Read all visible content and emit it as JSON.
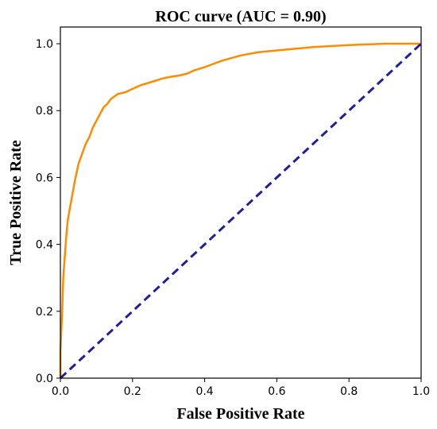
{
  "chart_data": {
    "type": "line",
    "title": "ROC curve (AUC = 0.90)",
    "xlabel": "False Positive Rate",
    "ylabel": "True Positive Rate",
    "xlim": [
      0.0,
      1.0
    ],
    "ylim": [
      0.0,
      1.05
    ],
    "xticks": [
      "0.0",
      "0.2",
      "0.4",
      "0.6",
      "0.8",
      "1.0"
    ],
    "yticks": [
      "0.0",
      "0.2",
      "0.4",
      "0.6",
      "0.8",
      "1.0"
    ],
    "grid": false,
    "series": [
      {
        "color": "#ff8c00",
        "style": "solid",
        "x": [
          0.0,
          0.0,
          0.005,
          0.008,
          0.012,
          0.016,
          0.02,
          0.025,
          0.03,
          0.035,
          0.04,
          0.05,
          0.06,
          0.07,
          0.08,
          0.09,
          0.1,
          0.11,
          0.12,
          0.13,
          0.14,
          0.16,
          0.18,
          0.2,
          0.22,
          0.25,
          0.28,
          0.3,
          0.33,
          0.35,
          0.37,
          0.4,
          0.45,
          0.5,
          0.55,
          0.6,
          0.65,
          0.7,
          0.75,
          0.8,
          0.85,
          0.9,
          0.95,
          1.0
        ],
        "y": [
          0.0,
          0.08,
          0.2,
          0.3,
          0.36,
          0.42,
          0.47,
          0.5,
          0.53,
          0.56,
          0.59,
          0.64,
          0.67,
          0.7,
          0.72,
          0.75,
          0.77,
          0.79,
          0.81,
          0.82,
          0.835,
          0.85,
          0.855,
          0.865,
          0.875,
          0.885,
          0.895,
          0.9,
          0.905,
          0.91,
          0.92,
          0.93,
          0.95,
          0.965,
          0.975,
          0.98,
          0.985,
          0.99,
          0.993,
          0.996,
          0.998,
          1.0,
          1.0,
          1.0
        ]
      },
      {
        "color": "#1f1f9e",
        "style": "dashed",
        "x": [
          0.0,
          1.0
        ],
        "y": [
          0.0,
          1.0
        ]
      }
    ]
  }
}
